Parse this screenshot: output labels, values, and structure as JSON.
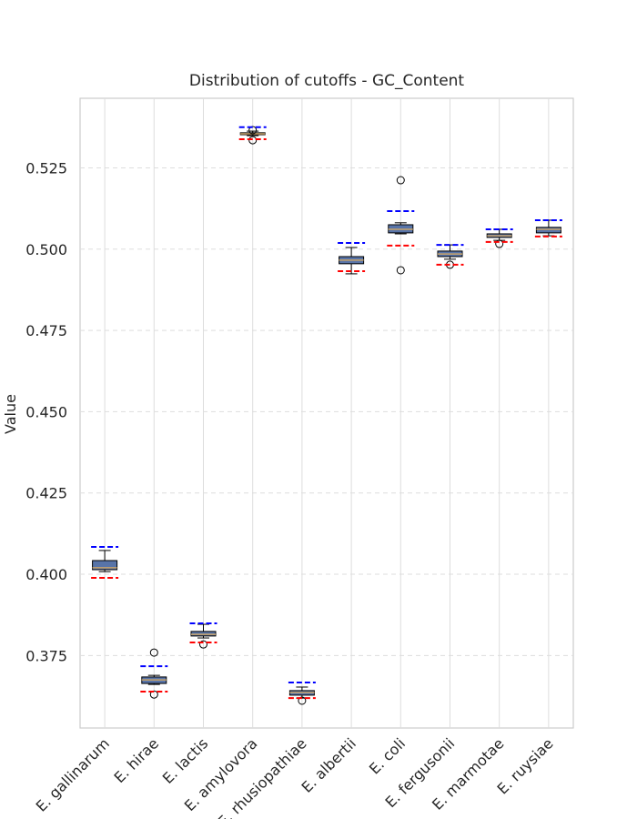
{
  "chart_data": {
    "type": "box",
    "title": "Distribution of cutoffs - GC_Content",
    "ylabel": "Value",
    "categories": [
      "E. gallinarum",
      "E. hirae",
      "E. lactis",
      "E. amylovora",
      "E. rhusiopathiae",
      "E. albertii",
      "E. coli",
      "E. fergusonii",
      "E. marmotae",
      "E. ruysiae"
    ],
    "boxes": [
      {
        "whisker_low": 0.4008,
        "q1": 0.4014,
        "median": 0.402,
        "q3": 0.4042,
        "whisker_high": 0.4073,
        "outliers": []
      },
      {
        "whisker_low": 0.3661,
        "q1": 0.3664,
        "median": 0.3675,
        "q3": 0.3684,
        "whisker_high": 0.3689,
        "outliers": [
          0.3759,
          0.363
        ]
      },
      {
        "whisker_low": 0.3804,
        "q1": 0.381,
        "median": 0.3815,
        "q3": 0.3824,
        "whisker_high": 0.3846,
        "outliers": [
          0.3784
        ]
      },
      {
        "whisker_low": 0.5349,
        "q1": 0.5352,
        "median": 0.5355,
        "q3": 0.5358,
        "whisker_high": 0.5363,
        "outliers": [
          0.5366,
          0.5335
        ]
      },
      {
        "whisker_low": 0.3619,
        "q1": 0.3628,
        "median": 0.3636,
        "q3": 0.3642,
        "whisker_high": 0.3653,
        "outliers": [
          0.3611
        ]
      },
      {
        "whisker_low": 0.4924,
        "q1": 0.4955,
        "median": 0.4966,
        "q3": 0.4977,
        "whisker_high": 0.5005,
        "outliers": []
      },
      {
        "whisker_low": 0.5047,
        "q1": 0.505,
        "median": 0.5061,
        "q3": 0.5075,
        "whisker_high": 0.5081,
        "outliers": [
          0.5212,
          0.4935
        ]
      },
      {
        "whisker_low": 0.4969,
        "q1": 0.4977,
        "median": 0.4985,
        "q3": 0.4994,
        "whisker_high": 0.5013,
        "outliers": [
          0.4952
        ]
      },
      {
        "whisker_low": 0.5027,
        "q1": 0.5036,
        "median": 0.5041,
        "q3": 0.5047,
        "whisker_high": 0.5061,
        "outliers": [
          0.5016
        ]
      },
      {
        "whisker_low": 0.5041,
        "q1": 0.505,
        "median": 0.5061,
        "q3": 0.5067,
        "whisker_high": 0.5089,
        "outliers": []
      }
    ],
    "upper_cutoff": {
      "color": "#0000ff",
      "values": [
        0.4084,
        0.3717,
        0.3849,
        0.5375,
        0.3667,
        0.5019,
        0.5117,
        0.5013,
        0.5061,
        0.5089
      ]
    },
    "lower_cutoff": {
      "color": "#ff0000",
      "values": [
        0.3989,
        0.3639,
        0.379,
        0.5338,
        0.3619,
        0.4932,
        0.5011,
        0.4952,
        0.5022,
        0.5039
      ]
    },
    "box_color": "#5874a8",
    "median_color": "#c9a36a",
    "ylim": [
      0.3527,
      0.5464
    ],
    "yticks": [
      0.375,
      {
        "value": 0.4,
        "label": "0.400"
      },
      0.425,
      {
        "value": 0.45,
        "label": "0.450"
      },
      0.475,
      {
        "value": 0.5,
        "label": "0.500"
      },
      0.525
    ],
    "grid": true
  }
}
